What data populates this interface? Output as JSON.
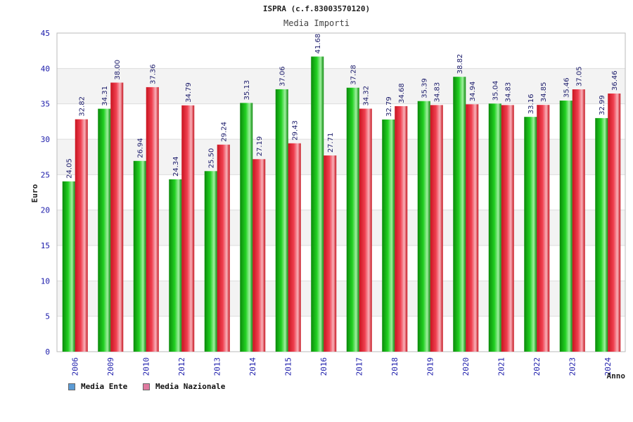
{
  "chart_data": {
    "type": "bar",
    "title": "ISPRA (c.f.83003570120)",
    "subtitle": "Media Importi",
    "xlabel": "Anno",
    "ylabel": "Euro",
    "ylim": [
      0,
      45
    ],
    "yticks": [
      0,
      5,
      10,
      15,
      20,
      25,
      30,
      35,
      40,
      45
    ],
    "categories": [
      "2006",
      "2009",
      "2010",
      "2012",
      "2013",
      "2014",
      "2015",
      "2016",
      "2017",
      "2018",
      "2019",
      "2020",
      "2021",
      "2022",
      "2023",
      "2024"
    ],
    "series": [
      {
        "name": "Media Ente",
        "legend_color": "#5b9bd5",
        "bar_color": "#11b011",
        "values": [
          24.05,
          34.31,
          26.94,
          24.34,
          25.5,
          35.13,
          37.06,
          41.68,
          37.28,
          32.79,
          35.39,
          38.82,
          35.04,
          33.16,
          35.46,
          32.99
        ]
      },
      {
        "name": "Media Nazionale",
        "legend_color": "#e07aa0",
        "bar_color": "#e8303c",
        "values": [
          32.82,
          38.0,
          37.36,
          34.79,
          29.24,
          27.19,
          29.43,
          27.71,
          34.32,
          34.68,
          34.83,
          34.94,
          34.83,
          34.85,
          37.05,
          36.46
        ]
      }
    ]
  }
}
